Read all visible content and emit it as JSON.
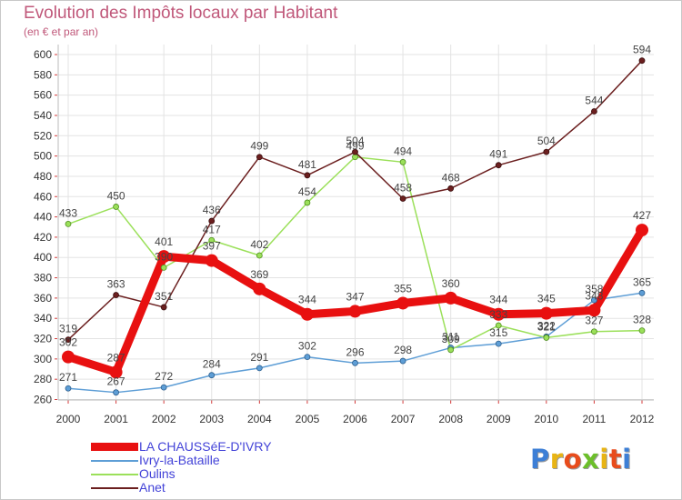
{
  "header": {
    "title": "Evolution des Impôts locaux par Habitant",
    "subtitle": "(en € et par an)"
  },
  "logo": {
    "text": "Proxiti",
    "colors": [
      "#3d7fd6",
      "#e8b414",
      "#e84c1c",
      "#6cbf2a",
      "#e8b414",
      "#e84c1c",
      "#3d7fd6"
    ]
  },
  "chart_data": {
    "type": "line",
    "title": "Evolution des Impôts locaux par Habitant",
    "subtitle": "(en € et par an)",
    "x": [
      "2000",
      "2001",
      "2002",
      "2003",
      "2004",
      "2005",
      "2006",
      "2007",
      "2008",
      "2009",
      "2010",
      "2011",
      "2012"
    ],
    "ylim": [
      260,
      600
    ],
    "yticks": [
      260,
      280,
      300,
      320,
      340,
      360,
      380,
      400,
      420,
      440,
      460,
      480,
      500,
      520,
      540,
      560,
      580,
      600
    ],
    "grid": true,
    "legend_position": "bottom-left",
    "series": [
      {
        "name": "LA CHAUSSéE-D'IVRY",
        "color": "#e81010",
        "values": [
          302,
          287,
          401,
          397,
          369,
          344,
          347,
          355,
          360,
          344,
          345,
          348,
          427
        ],
        "labels": [
          "302",
          "287",
          "401",
          "397",
          "369",
          "344",
          "347",
          "355",
          "360",
          "344",
          "345",
          "348",
          "427"
        ]
      },
      {
        "name": "Ivry-la-Bataille",
        "color": "#5e9ed6",
        "values": [
          271,
          267,
          272,
          284,
          291,
          302,
          296,
          298,
          311,
          315,
          322,
          358,
          365
        ],
        "labels": [
          "271",
          "267",
          "272",
          "284",
          "291",
          "302",
          "296",
          "298",
          "311",
          "315",
          "322",
          "358",
          "365"
        ]
      },
      {
        "name": "Oulins",
        "color": "#9be05a",
        "values": [
          433,
          450,
          390,
          417,
          402,
          454,
          499,
          494,
          309,
          333,
          321,
          327,
          328
        ],
        "labels": [
          "433",
          "450",
          "390",
          "417",
          "402",
          "454",
          "499",
          "494",
          "309",
          "333",
          "321",
          "327",
          "328"
        ]
      },
      {
        "name": "Anet",
        "color": "#6b1f1f",
        "values": [
          319,
          363,
          351,
          436,
          499,
          481,
          504,
          458,
          468,
          491,
          504,
          544,
          594
        ],
        "labels": [
          "319",
          "363",
          "351",
          "436",
          "499",
          "481",
          "504",
          "458",
          "468",
          "491",
          "504",
          "544",
          "594"
        ]
      }
    ]
  }
}
